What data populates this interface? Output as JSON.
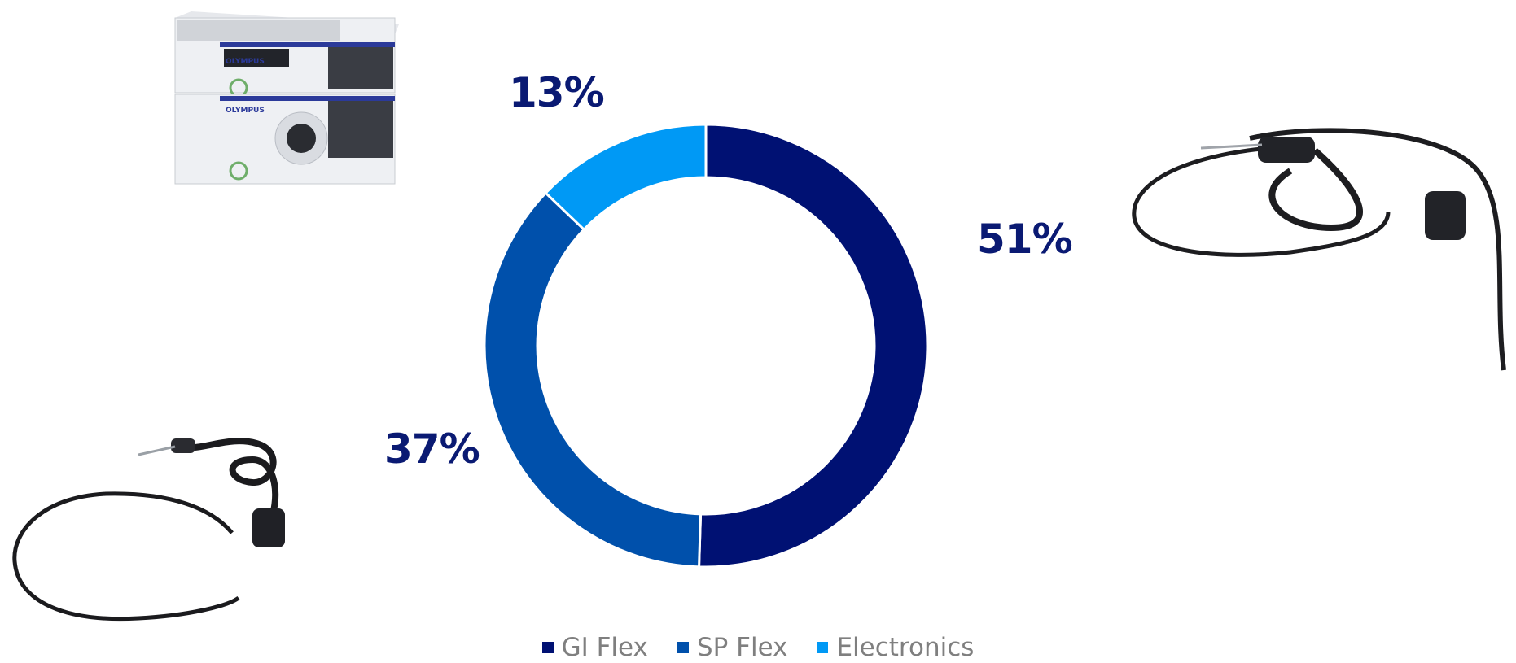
{
  "chart_data": {
    "type": "pie",
    "title": "",
    "donut": true,
    "categories": [
      "GI Flex",
      "SP Flex",
      "Electronics"
    ],
    "values": [
      51,
      37,
      13
    ],
    "colors": [
      "#001173",
      "#0050ab",
      "#0099f5"
    ],
    "data_labels": [
      "51%",
      "37%",
      "13%"
    ],
    "legend": {
      "position": "bottom",
      "items": [
        "GI Flex",
        "SP Flex",
        "Electronics"
      ]
    }
  },
  "images": [
    {
      "name": "olympus-processor-image",
      "description": "Olympus video processor and light source units",
      "brand_text": [
        "OLYMPUS",
        "OLYMPUS"
      ]
    },
    {
      "name": "gastroscope-image",
      "description": "Flexible GI endoscope"
    },
    {
      "name": "sp-endoscope-image",
      "description": "Flexible endoscope with long insertion tube"
    }
  ]
}
